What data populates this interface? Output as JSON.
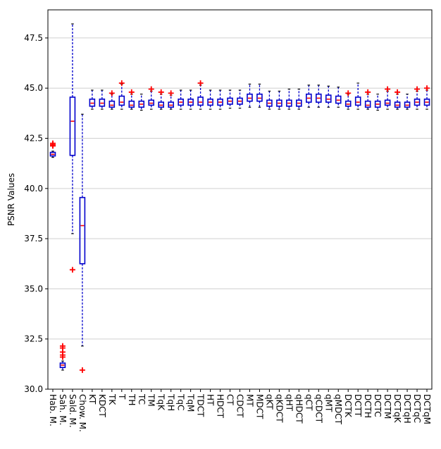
{
  "chart_data": {
    "type": "box",
    "title": "",
    "xlabel": "",
    "ylabel": "PSNR Values",
    "ylim": [
      30.0,
      48.9
    ],
    "yticks": [
      "30.0",
      "32.5",
      "35.0",
      "37.5",
      "40.0",
      "42.5",
      "45.0",
      "47.5"
    ],
    "grid": "horizontal",
    "colors": {
      "box": "#0000cc",
      "median": "#ff0000",
      "flier": "#ff0000",
      "whisker": "#0000cc"
    },
    "categories": [
      "Hab. M.",
      "Sah. M.",
      "Sald. M.",
      "Chow. M.",
      "KT",
      "KDCT",
      "TK",
      "T",
      "TH",
      "TC",
      "TM",
      "TqK",
      "TqH",
      "TqC",
      "TqM",
      "TDCT",
      "HT",
      "HDCT",
      "CT",
      "CDCT",
      "MT",
      "MDCT",
      "qKT",
      "qKDCT",
      "qHT",
      "qHDCT",
      "qCT",
      "qCDCT",
      "qMT",
      "qMDCT",
      "DCTK",
      "DCTT",
      "DCTH",
      "DCTC",
      "DCTM",
      "DCTqK",
      "DCTqH",
      "DCTqC",
      "DCTqM"
    ],
    "boxes": [
      {
        "min": 41.55,
        "q1": 41.62,
        "median": 41.7,
        "q3": 41.8,
        "max": 41.86,
        "fliers": [
          42.12,
          42.18,
          42.25
        ]
      },
      {
        "min": 30.95,
        "q1": 31.08,
        "median": 31.2,
        "q3": 31.3,
        "max": 31.4,
        "fliers": [
          31.6,
          31.7,
          31.85,
          32.05,
          32.15
        ]
      },
      {
        "min": 37.75,
        "q1": 41.65,
        "median": 43.35,
        "q3": 44.55,
        "max": 48.2,
        "fliers": [
          35.95
        ]
      },
      {
        "min": 32.15,
        "q1": 36.25,
        "median": 38.15,
        "q3": 39.55,
        "max": 43.7,
        "fliers": [
          30.95
        ]
      },
      {
        "min": 43.95,
        "q1": 44.1,
        "median": 44.25,
        "q3": 44.45,
        "max": 44.9,
        "fliers": []
      },
      {
        "min": 43.95,
        "q1": 44.1,
        "median": 44.25,
        "q3": 44.45,
        "max": 44.9,
        "fliers": []
      },
      {
        "min": 43.95,
        "q1": 44.05,
        "median": 44.15,
        "q3": 44.35,
        "max": 44.7,
        "fliers": [
          44.75
        ]
      },
      {
        "min": 43.95,
        "q1": 44.15,
        "median": 44.3,
        "q3": 44.6,
        "max": 45.2,
        "fliers": [
          45.25
        ]
      },
      {
        "min": 43.95,
        "q1": 44.05,
        "median": 44.15,
        "q3": 44.35,
        "max": 44.7,
        "fliers": [
          44.8
        ]
      },
      {
        "min": 43.9,
        "q1": 44.05,
        "median": 44.2,
        "q3": 44.35,
        "max": 44.7,
        "fliers": []
      },
      {
        "min": 43.95,
        "q1": 44.15,
        "median": 44.25,
        "q3": 44.4,
        "max": 44.85,
        "fliers": [
          44.95
        ]
      },
      {
        "min": 43.95,
        "q1": 44.05,
        "median": 44.15,
        "q3": 44.3,
        "max": 44.7,
        "fliers": [
          44.8
        ]
      },
      {
        "min": 43.95,
        "q1": 44.05,
        "median": 44.15,
        "q3": 44.3,
        "max": 44.65,
        "fliers": [
          44.75
        ]
      },
      {
        "min": 43.95,
        "q1": 44.15,
        "median": 44.3,
        "q3": 44.45,
        "max": 44.9,
        "fliers": []
      },
      {
        "min": 43.95,
        "q1": 44.15,
        "median": 44.3,
        "q3": 44.45,
        "max": 44.9,
        "fliers": []
      },
      {
        "min": 43.95,
        "q1": 44.15,
        "median": 44.3,
        "q3": 44.55,
        "max": 45.15,
        "fliers": [
          45.25
        ]
      },
      {
        "min": 43.95,
        "q1": 44.15,
        "median": 44.3,
        "q3": 44.45,
        "max": 44.9,
        "fliers": []
      },
      {
        "min": 43.95,
        "q1": 44.15,
        "median": 44.3,
        "q3": 44.45,
        "max": 44.9,
        "fliers": []
      },
      {
        "min": 44.0,
        "q1": 44.2,
        "median": 44.35,
        "q3": 44.5,
        "max": 44.9,
        "fliers": []
      },
      {
        "min": 44.0,
        "q1": 44.2,
        "median": 44.35,
        "q3": 44.5,
        "max": 44.9,
        "fliers": []
      },
      {
        "min": 44.05,
        "q1": 44.35,
        "median": 44.5,
        "q3": 44.7,
        "max": 45.2,
        "fliers": []
      },
      {
        "min": 44.05,
        "q1": 44.35,
        "median": 44.5,
        "q3": 44.7,
        "max": 45.2,
        "fliers": []
      },
      {
        "min": 43.95,
        "q1": 44.1,
        "median": 44.25,
        "q3": 44.4,
        "max": 44.85,
        "fliers": []
      },
      {
        "min": 43.95,
        "q1": 44.1,
        "median": 44.25,
        "q3": 44.4,
        "max": 44.85,
        "fliers": []
      },
      {
        "min": 43.95,
        "q1": 44.1,
        "median": 44.25,
        "q3": 44.4,
        "max": 44.95,
        "fliers": []
      },
      {
        "min": 43.95,
        "q1": 44.1,
        "median": 44.25,
        "q3": 44.4,
        "max": 44.95,
        "fliers": []
      },
      {
        "min": 44.05,
        "q1": 44.3,
        "median": 44.5,
        "q3": 44.7,
        "max": 45.15,
        "fliers": []
      },
      {
        "min": 44.05,
        "q1": 44.3,
        "median": 44.5,
        "q3": 44.7,
        "max": 45.15,
        "fliers": []
      },
      {
        "min": 44.05,
        "q1": 44.3,
        "median": 44.45,
        "q3": 44.65,
        "max": 45.1,
        "fliers": []
      },
      {
        "min": 44.05,
        "q1": 44.25,
        "median": 44.4,
        "q3": 44.6,
        "max": 45.05,
        "fliers": []
      },
      {
        "min": 43.95,
        "q1": 44.1,
        "median": 44.2,
        "q3": 44.35,
        "max": 44.7,
        "fliers": [
          44.75
        ]
      },
      {
        "min": 43.95,
        "q1": 44.15,
        "median": 44.3,
        "q3": 44.55,
        "max": 45.25,
        "fliers": []
      },
      {
        "min": 43.95,
        "q1": 44.05,
        "median": 44.15,
        "q3": 44.35,
        "max": 44.7,
        "fliers": [
          44.8
        ]
      },
      {
        "min": 43.9,
        "q1": 44.05,
        "median": 44.2,
        "q3": 44.35,
        "max": 44.7,
        "fliers": []
      },
      {
        "min": 43.95,
        "q1": 44.15,
        "median": 44.25,
        "q3": 44.4,
        "max": 44.85,
        "fliers": [
          44.95
        ]
      },
      {
        "min": 43.95,
        "q1": 44.05,
        "median": 44.15,
        "q3": 44.3,
        "max": 44.7,
        "fliers": [
          44.8
        ]
      },
      {
        "min": 43.95,
        "q1": 44.05,
        "median": 44.15,
        "q3": 44.3,
        "max": 44.7,
        "fliers": []
      },
      {
        "min": 43.95,
        "q1": 44.15,
        "median": 44.3,
        "q3": 44.45,
        "max": 44.85,
        "fliers": [
          44.95
        ]
      },
      {
        "min": 43.95,
        "q1": 44.15,
        "median": 44.3,
        "q3": 44.45,
        "max": 44.9,
        "fliers": [
          45.0
        ]
      }
    ]
  }
}
